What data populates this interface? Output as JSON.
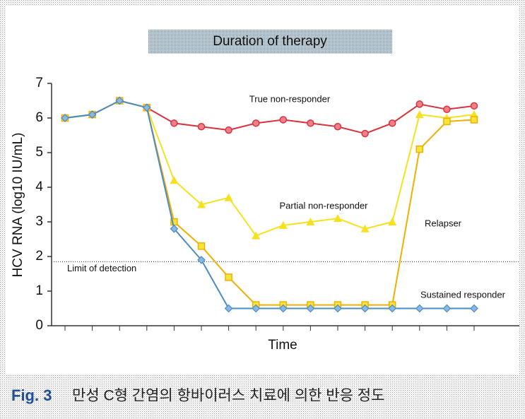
{
  "chart_data": {
    "type": "line",
    "title": "Duration of therapy",
    "x_label": "Time",
    "y_label": "HCV RNA (log10 IU/mL)",
    "categories": [
      null,
      null,
      null,
      null,
      null,
      null,
      null,
      null,
      null,
      null,
      null,
      null,
      null,
      null,
      null,
      null
    ],
    "ylim": [
      0,
      7
    ],
    "yticks": [
      0,
      1,
      2,
      3,
      4,
      5,
      6,
      7
    ],
    "reference_line": {
      "label": "Limit of detection",
      "value": 1.85
    },
    "series": [
      {
        "name": "True non-responder",
        "color": "#d8323e",
        "marker": "circle",
        "values": [
          6.0,
          6.1,
          6.5,
          6.3,
          5.85,
          5.75,
          5.65,
          5.85,
          5.95,
          5.85,
          5.75,
          5.55,
          5.85,
          6.4,
          6.25,
          6.35
        ]
      },
      {
        "name": "Partial non-responder",
        "color": "#f5e11e",
        "marker": "triangle",
        "values": [
          6.0,
          6.1,
          6.5,
          6.3,
          4.2,
          3.5,
          3.7,
          2.6,
          2.9,
          3.0,
          3.1,
          2.8,
          3.0,
          6.1,
          6.0,
          6.1
        ]
      },
      {
        "name": "Relapser",
        "color": "#f0b000",
        "marker": "square",
        "values": [
          6.0,
          6.1,
          6.5,
          6.3,
          3.0,
          2.3,
          1.4,
          0.6,
          0.6,
          0.6,
          0.6,
          0.6,
          0.6,
          5.1,
          5.9,
          5.95
        ]
      },
      {
        "name": "Sustained responder",
        "color": "#4a8cc4",
        "marker": "diamond",
        "values": [
          6.0,
          6.1,
          6.5,
          6.3,
          2.8,
          1.9,
          0.5,
          0.5,
          0.5,
          0.5,
          0.5,
          0.5,
          0.5,
          0.5,
          0.5,
          0.5
        ]
      }
    ]
  },
  "caption_label": "Fig. 3",
  "caption": "만성 C형 간염의 항바이러스 치료에 의한 반응 정도"
}
